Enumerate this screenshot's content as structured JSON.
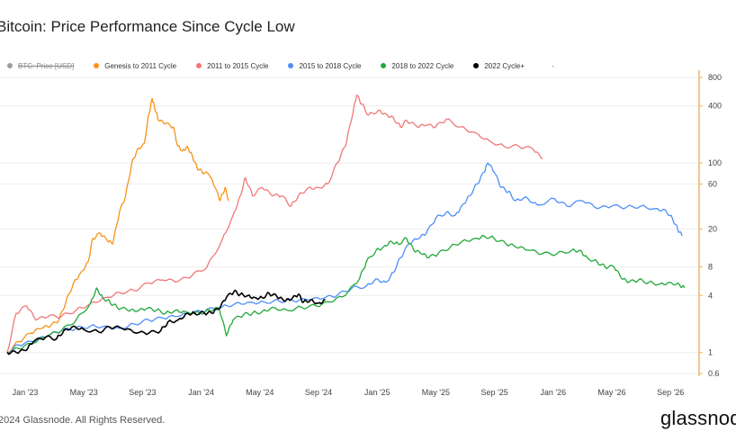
{
  "title": "Bitcoin: Price Performance Since Cycle Low",
  "legend": [
    {
      "label": "BTC: Price [USD]",
      "color": "#9e9e9e",
      "hidden": true
    },
    {
      "label": "Genesis to 2011 Cycle",
      "color": "#f7931a",
      "hidden": false
    },
    {
      "label": "2011 to 2015 Cycle",
      "color": "#f07878",
      "hidden": false
    },
    {
      "label": "2015 to 2018 Cycle",
      "color": "#4f8ff7",
      "hidden": false
    },
    {
      "label": "2018 to 2022 Cycle",
      "color": "#22a83a",
      "hidden": false
    },
    {
      "label": "2022 Cycle+",
      "color": "#000000",
      "hidden": false
    }
  ],
  "legend_extra": "-",
  "copyright": "2024 Glassnode. All Rights Reserved.",
  "brand": "glassnode",
  "chart_data": {
    "type": "line",
    "title": "Bitcoin: Price Performance Since Cycle Low",
    "y_scale": "log",
    "ylim": [
      0.6,
      800
    ],
    "y_ticks": [
      "800",
      "400",
      "100",
      "60",
      "20",
      "8",
      "4",
      "1",
      "0.6"
    ],
    "x_ticks": [
      "Jan '23",
      "May '23",
      "Sep '23",
      "Jan '24",
      "May '24",
      "Sep '24",
      "Jan '25",
      "May '25",
      "Sep '25",
      "Jan '26",
      "May '26",
      "Sep '26"
    ],
    "xlim": [
      "2022-11-21",
      "2026-11-15"
    ],
    "grid": true,
    "legend_position": "top",
    "series": [
      {
        "name": "Genesis to 2011 Cycle",
        "color": "#f7931a",
        "points": [
          [
            "2022-11-21",
            1.0
          ],
          [
            "2022-12-15",
            1.3
          ],
          [
            "2023-01-10",
            1.6
          ],
          [
            "2023-02-01",
            1.8
          ],
          [
            "2023-02-20",
            1.9
          ],
          [
            "2023-03-10",
            2.2
          ],
          [
            "2023-03-25",
            3.5
          ],
          [
            "2023-04-10",
            5.5
          ],
          [
            "2023-04-25",
            7.0
          ],
          [
            "2023-05-10",
            9
          ],
          [
            "2023-05-20",
            16
          ],
          [
            "2023-06-05",
            18
          ],
          [
            "2023-06-20",
            15
          ],
          [
            "2023-07-01",
            14
          ],
          [
            "2023-07-15",
            30
          ],
          [
            "2023-07-28",
            45
          ],
          [
            "2023-08-10",
            100
          ],
          [
            "2023-08-22",
            140
          ],
          [
            "2023-09-05",
            160
          ],
          [
            "2023-09-15",
            330
          ],
          [
            "2023-09-22",
            480
          ],
          [
            "2023-09-27",
            380
          ],
          [
            "2023-10-05",
            280
          ],
          [
            "2023-10-20",
            260
          ],
          [
            "2023-11-05",
            240
          ],
          [
            "2023-11-15",
            150
          ],
          [
            "2023-11-25",
            135
          ],
          [
            "2023-12-05",
            150
          ],
          [
            "2023-12-15",
            120
          ],
          [
            "2023-12-25",
            90
          ],
          [
            "2024-01-05",
            80
          ],
          [
            "2024-01-20",
            75
          ],
          [
            "2024-02-01",
            55
          ],
          [
            "2024-02-12",
            40
          ],
          [
            "2024-02-22",
            55
          ],
          [
            "2024-03-01",
            40
          ]
        ]
      },
      {
        "name": "2011 to 2015 Cycle",
        "color": "#f07878",
        "points": [
          [
            "2022-11-21",
            1.0
          ],
          [
            "2022-12-10",
            2.6
          ],
          [
            "2023-01-01",
            3.1
          ],
          [
            "2023-01-20",
            2.2
          ],
          [
            "2023-02-15",
            2.4
          ],
          [
            "2023-03-15",
            2.4
          ],
          [
            "2023-04-15",
            2.8
          ],
          [
            "2023-05-15",
            3.3
          ],
          [
            "2023-06-15",
            3.8
          ],
          [
            "2023-07-15",
            4.3
          ],
          [
            "2023-08-15",
            4.5
          ],
          [
            "2023-09-15",
            5.4
          ],
          [
            "2023-10-15",
            5.8
          ],
          [
            "2023-11-15",
            5.6
          ],
          [
            "2023-12-15",
            6.5
          ],
          [
            "2024-01-15",
            8.0
          ],
          [
            "2024-02-15",
            15
          ],
          [
            "2024-03-10",
            28
          ],
          [
            "2024-03-25",
            45
          ],
          [
            "2024-04-05",
            70
          ],
          [
            "2024-04-20",
            45
          ],
          [
            "2024-05-10",
            55
          ],
          [
            "2024-06-01",
            45
          ],
          [
            "2024-06-20",
            45
          ],
          [
            "2024-07-10",
            35
          ],
          [
            "2024-07-25",
            45
          ],
          [
            "2024-08-15",
            55
          ],
          [
            "2024-09-05",
            55
          ],
          [
            "2024-09-25",
            60
          ],
          [
            "2024-10-15",
            100
          ],
          [
            "2024-11-01",
            150
          ],
          [
            "2024-11-15",
            300
          ],
          [
            "2024-11-25",
            520
          ],
          [
            "2024-12-05",
            420
          ],
          [
            "2024-12-20",
            320
          ],
          [
            "2025-01-10",
            360
          ],
          [
            "2025-01-25",
            330
          ],
          [
            "2025-02-10",
            300
          ],
          [
            "2025-02-25",
            240
          ],
          [
            "2025-03-10",
            280
          ],
          [
            "2025-04-01",
            240
          ],
          [
            "2025-04-20",
            250
          ],
          [
            "2025-05-10",
            240
          ],
          [
            "2025-06-01",
            290
          ],
          [
            "2025-07-01",
            240
          ],
          [
            "2025-08-01",
            210
          ],
          [
            "2025-09-01",
            170
          ],
          [
            "2025-10-01",
            150
          ],
          [
            "2025-11-01",
            150
          ],
          [
            "2025-12-01",
            140
          ],
          [
            "2025-12-20",
            110
          ]
        ]
      },
      {
        "name": "2015 to 2018 Cycle",
        "color": "#4f8ff7",
        "points": [
          [
            "2022-11-21",
            1.0
          ],
          [
            "2022-12-15",
            1.2
          ],
          [
            "2023-01-15",
            1.3
          ],
          [
            "2023-02-15",
            1.5
          ],
          [
            "2023-03-15",
            1.7
          ],
          [
            "2023-04-15",
            1.8
          ],
          [
            "2023-05-15",
            1.9
          ],
          [
            "2023-06-15",
            1.9
          ],
          [
            "2023-07-15",
            1.8
          ],
          [
            "2023-08-15",
            2.0
          ],
          [
            "2023-09-15",
            2.2
          ],
          [
            "2023-10-15",
            2.3
          ],
          [
            "2023-11-15",
            2.4
          ],
          [
            "2023-12-15",
            2.6
          ],
          [
            "2024-01-15",
            2.8
          ],
          [
            "2024-02-15",
            3.0
          ],
          [
            "2024-03-15",
            3.3
          ],
          [
            "2024-04-15",
            3.4
          ],
          [
            "2024-05-15",
            3.4
          ],
          [
            "2024-06-15",
            3.5
          ],
          [
            "2024-07-15",
            3.5
          ],
          [
            "2024-08-15",
            3.6
          ],
          [
            "2024-09-15",
            3.7
          ],
          [
            "2024-10-15",
            4.0
          ],
          [
            "2024-11-15",
            4.8
          ],
          [
            "2024-12-15",
            5.0
          ],
          [
            "2025-01-05",
            6.0
          ],
          [
            "2025-01-25",
            5.5
          ],
          [
            "2025-02-10",
            7.0
          ],
          [
            "2025-02-25",
            10
          ],
          [
            "2025-03-15",
            14
          ],
          [
            "2025-04-05",
            16
          ],
          [
            "2025-04-20",
            18
          ],
          [
            "2025-05-10",
            26
          ],
          [
            "2025-06-01",
            30
          ],
          [
            "2025-06-20",
            28
          ],
          [
            "2025-07-05",
            36
          ],
          [
            "2025-07-20",
            45
          ],
          [
            "2025-08-05",
            60
          ],
          [
            "2025-08-20",
            80
          ],
          [
            "2025-08-28",
            100
          ],
          [
            "2025-09-10",
            80
          ],
          [
            "2025-09-25",
            55
          ],
          [
            "2025-10-10",
            50
          ],
          [
            "2025-10-25",
            40
          ],
          [
            "2025-11-15",
            44
          ],
          [
            "2025-12-10",
            36
          ],
          [
            "2026-01-15",
            42
          ],
          [
            "2026-02-10",
            35
          ],
          [
            "2026-03-15",
            40
          ],
          [
            "2026-04-15",
            33
          ],
          [
            "2026-05-15",
            35
          ],
          [
            "2026-06-15",
            34
          ],
          [
            "2026-07-15",
            35
          ],
          [
            "2026-08-15",
            33
          ],
          [
            "2026-09-05",
            32
          ],
          [
            "2026-09-20",
            26
          ],
          [
            "2026-10-01",
            20
          ],
          [
            "2026-10-10",
            17
          ]
        ]
      },
      {
        "name": "2018 to 2022 Cycle",
        "color": "#22a83a",
        "points": [
          [
            "2022-11-21",
            1.0
          ],
          [
            "2022-12-15",
            1.1
          ],
          [
            "2023-01-15",
            1.25
          ],
          [
            "2023-02-15",
            1.5
          ],
          [
            "2023-03-15",
            1.7
          ],
          [
            "2023-04-15",
            2.2
          ],
          [
            "2023-05-15",
            3.3
          ],
          [
            "2023-05-28",
            4.8
          ],
          [
            "2023-06-10",
            3.8
          ],
          [
            "2023-06-25",
            3.4
          ],
          [
            "2023-07-10",
            3.0
          ],
          [
            "2023-08-01",
            2.8
          ],
          [
            "2023-08-20",
            2.7
          ],
          [
            "2023-09-10",
            2.9
          ],
          [
            "2023-10-01",
            2.8
          ],
          [
            "2023-10-20",
            2.6
          ],
          [
            "2023-11-10",
            2.8
          ],
          [
            "2023-12-01",
            2.7
          ],
          [
            "2024-01-01",
            2.6
          ],
          [
            "2024-01-20",
            2.8
          ],
          [
            "2024-02-10",
            2.9
          ],
          [
            "2024-02-25",
            1.5
          ],
          [
            "2024-03-10",
            2.2
          ],
          [
            "2024-04-01",
            2.5
          ],
          [
            "2024-04-20",
            2.6
          ],
          [
            "2024-05-10",
            2.7
          ],
          [
            "2024-06-01",
            3.0
          ],
          [
            "2024-07-01",
            2.8
          ],
          [
            "2024-08-01",
            3.0
          ],
          [
            "2024-09-01",
            3.1
          ],
          [
            "2024-10-01",
            3.4
          ],
          [
            "2024-11-01",
            4.0
          ],
          [
            "2024-12-01",
            6.0
          ],
          [
            "2024-12-15",
            9.0
          ],
          [
            "2025-01-05",
            12
          ],
          [
            "2025-01-20",
            13
          ],
          [
            "2025-02-05",
            15
          ],
          [
            "2025-02-20",
            14
          ],
          [
            "2025-03-10",
            16
          ],
          [
            "2025-03-25",
            12
          ],
          [
            "2025-04-10",
            11
          ],
          [
            "2025-04-25",
            10
          ],
          [
            "2025-05-15",
            11
          ],
          [
            "2025-06-10",
            13
          ],
          [
            "2025-07-05",
            15
          ],
          [
            "2025-08-01",
            16
          ],
          [
            "2025-08-20",
            17
          ],
          [
            "2025-09-10",
            16
          ],
          [
            "2025-10-05",
            14
          ],
          [
            "2025-10-25",
            13
          ],
          [
            "2025-11-20",
            12
          ],
          [
            "2025-12-20",
            11
          ],
          [
            "2026-01-20",
            11
          ],
          [
            "2026-02-20",
            12
          ],
          [
            "2026-03-10",
            12
          ],
          [
            "2026-03-25",
            10
          ],
          [
            "2026-04-15",
            9
          ],
          [
            "2026-05-01",
            8
          ],
          [
            "2026-05-20",
            8
          ],
          [
            "2026-06-05",
            6
          ],
          [
            "2026-06-20",
            5.5
          ],
          [
            "2026-07-10",
            5.8
          ],
          [
            "2026-08-01",
            5.5
          ],
          [
            "2026-08-25",
            5.3
          ],
          [
            "2026-09-15",
            5.5
          ],
          [
            "2026-10-05",
            5.2
          ],
          [
            "2026-10-15",
            4.8
          ]
        ]
      },
      {
        "name": "2022 Cycle+",
        "color": "#000000",
        "points": [
          [
            "2022-11-21",
            1.0
          ],
          [
            "2022-12-10",
            1.0
          ],
          [
            "2022-12-31",
            1.05
          ],
          [
            "2023-01-15",
            1.3
          ],
          [
            "2023-02-10",
            1.45
          ],
          [
            "2023-03-05",
            1.4
          ],
          [
            "2023-03-20",
            1.7
          ],
          [
            "2023-04-10",
            1.9
          ],
          [
            "2023-05-01",
            1.75
          ],
          [
            "2023-06-01",
            1.65
          ],
          [
            "2023-06-25",
            1.85
          ],
          [
            "2023-07-20",
            1.8
          ],
          [
            "2023-08-20",
            1.6
          ],
          [
            "2023-09-15",
            1.6
          ],
          [
            "2023-10-10",
            1.7
          ],
          [
            "2023-10-25",
            2.1
          ],
          [
            "2023-11-15",
            2.2
          ],
          [
            "2023-12-05",
            2.6
          ],
          [
            "2023-12-20",
            2.6
          ],
          [
            "2024-01-10",
            2.6
          ],
          [
            "2024-01-25",
            2.6
          ],
          [
            "2024-02-10",
            2.9
          ],
          [
            "2024-02-25",
            3.8
          ],
          [
            "2024-03-12",
            4.4
          ],
          [
            "2024-03-25",
            4.1
          ],
          [
            "2024-04-10",
            4.0
          ],
          [
            "2024-04-25",
            3.8
          ],
          [
            "2024-05-10",
            3.8
          ],
          [
            "2024-05-25",
            4.2
          ],
          [
            "2024-06-10",
            3.9
          ],
          [
            "2024-06-25",
            3.5
          ],
          [
            "2024-07-10",
            3.6
          ],
          [
            "2024-07-25",
            4.1
          ],
          [
            "2024-08-05",
            3.4
          ],
          [
            "2024-08-20",
            3.6
          ],
          [
            "2024-09-05",
            3.3
          ],
          [
            "2024-09-20",
            3.6
          ]
        ]
      }
    ]
  }
}
